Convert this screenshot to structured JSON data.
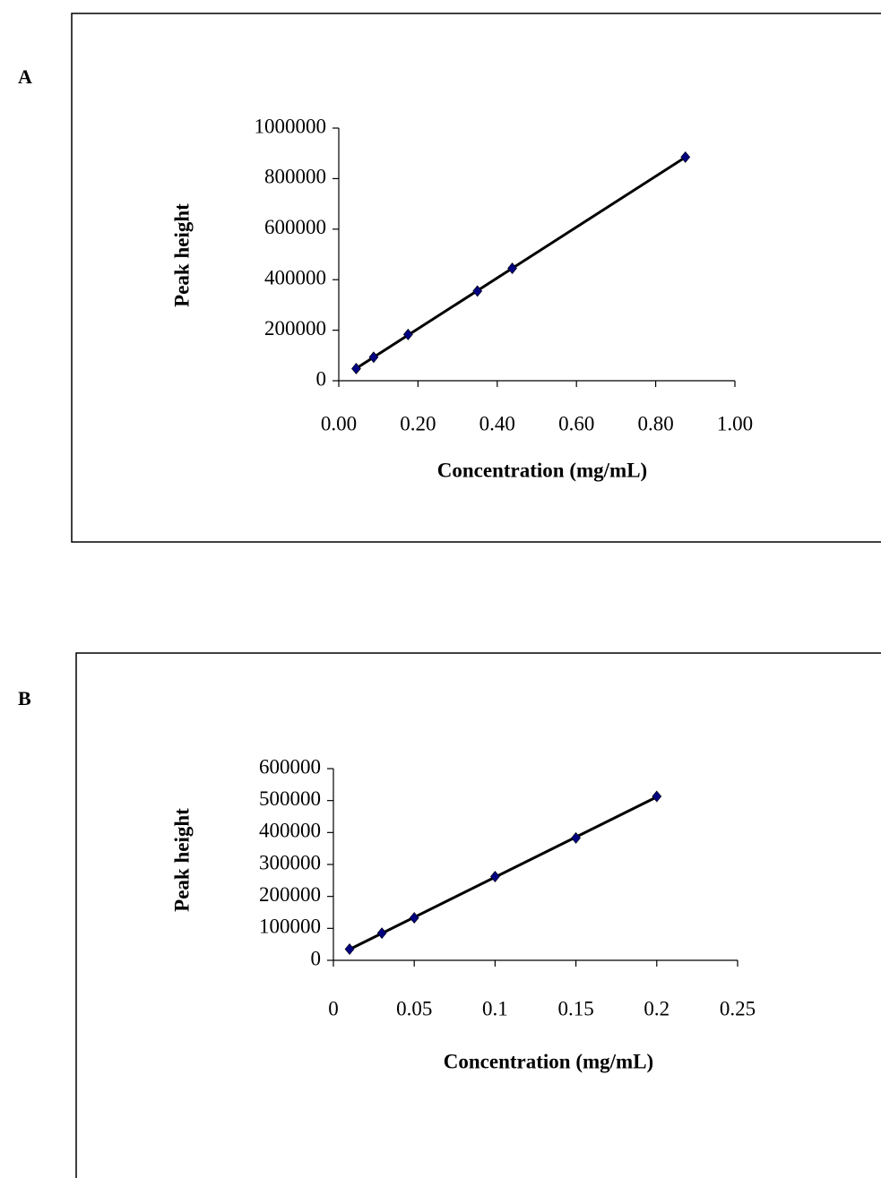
{
  "chart_data": [
    {
      "type": "scatter",
      "label": "A",
      "x_label": "Concentration (mg/mL)",
      "y_label": "Peak height",
      "series": [
        {
          "color": "#000080",
          "x": [
            0.044,
            0.088,
            0.175,
            0.35,
            0.438,
            0.875
          ],
          "values": [
            48000,
            93000,
            183000,
            355000,
            445000,
            885000
          ]
        }
      ],
      "trendline": true,
      "xlim": [
        0,
        1
      ],
      "xticks": [
        {
          "value": 0,
          "label": "0.00"
        },
        {
          "value": 0.2,
          "label": "0.20"
        },
        {
          "value": 0.4,
          "label": "0.40"
        },
        {
          "value": 0.6,
          "label": "0.60"
        },
        {
          "value": 0.8,
          "label": "0.80"
        },
        {
          "value": 1,
          "label": "1.00"
        }
      ],
      "ylim": [
        0,
        1000000
      ],
      "yticks": [
        0,
        200000,
        400000,
        600000,
        800000,
        1000000
      ]
    },
    {
      "type": "scatter",
      "label": "B",
      "x_label": "Concentration (mg/mL)",
      "y_label": "Peak height",
      "series": [
        {
          "color": "#000080",
          "x": [
            0.01,
            0.03,
            0.05,
            0.1,
            0.15,
            0.2
          ],
          "values": [
            35000,
            85000,
            133000,
            262000,
            383000,
            513000
          ]
        }
      ],
      "trendline": true,
      "xlim": [
        0,
        0.25
      ],
      "xticks": [
        0,
        0.05,
        0.1,
        0.15,
        0.2,
        0.25
      ],
      "ylim": [
        0,
        600000
      ],
      "yticks": [
        0,
        100000,
        200000,
        300000,
        400000,
        500000,
        600000
      ]
    }
  ]
}
